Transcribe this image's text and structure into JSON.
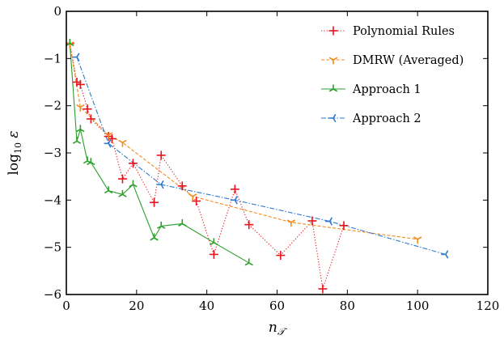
{
  "chart_data": {
    "type": "line",
    "xlabel": "n_T",
    "ylabel": "log10 ε",
    "xlim": [
      0,
      120
    ],
    "ylim": [
      -6,
      0
    ],
    "xticks": [
      0,
      20,
      40,
      60,
      80,
      100,
      120
    ],
    "yticks": [
      0,
      -1,
      -2,
      -3,
      -4,
      -5,
      -6
    ],
    "xtick_labels": [
      "0",
      "20",
      "40",
      "60",
      "80",
      "100",
      "120"
    ],
    "ytick_labels": [
      "0",
      "−1",
      "−2",
      "−3",
      "−4",
      "−5",
      "−6"
    ],
    "grid": false,
    "legend_position": "top-right",
    "series": [
      {
        "name": "Polynomial Rules",
        "color": "#e8141b",
        "style": "dotted",
        "marker": "plus",
        "points": [
          [
            1,
            -0.68
          ],
          [
            3,
            -1.5
          ],
          [
            4,
            -1.55
          ],
          [
            6,
            -2.07
          ],
          [
            7,
            -2.28
          ],
          [
            12,
            -2.65
          ],
          [
            13,
            -2.7
          ],
          [
            16,
            -3.55
          ],
          [
            19,
            -3.22
          ],
          [
            25,
            -4.05
          ],
          [
            27,
            -3.05
          ],
          [
            33,
            -3.7
          ],
          [
            37,
            -4.02
          ],
          [
            42,
            -5.15
          ],
          [
            48,
            -3.77
          ],
          [
            52,
            -4.52
          ],
          [
            61,
            -5.17
          ],
          [
            70,
            -4.44
          ],
          [
            73,
            -5.88
          ],
          [
            79,
            -4.54
          ]
        ]
      },
      {
        "name": "DMRW (Averaged)",
        "color": "#f28b1c",
        "style": "dashed",
        "marker": "tri_down",
        "points": [
          [
            1,
            -0.7
          ],
          [
            4,
            -2.03
          ],
          [
            12,
            -2.62
          ],
          [
            16,
            -2.78
          ],
          [
            36,
            -3.92
          ],
          [
            64,
            -4.47
          ],
          [
            100,
            -4.83
          ]
        ]
      },
      {
        "name": "Approach 1",
        "color": "#2ca02c",
        "style": "solid",
        "marker": "tri_up",
        "points": [
          [
            1,
            -0.68
          ],
          [
            3,
            -2.75
          ],
          [
            4,
            -2.5
          ],
          [
            6,
            -3.17
          ],
          [
            7,
            -3.2
          ],
          [
            12,
            -3.8
          ],
          [
            16,
            -3.88
          ],
          [
            19,
            -3.67
          ],
          [
            25,
            -4.8
          ],
          [
            27,
            -4.55
          ],
          [
            33,
            -4.5
          ],
          [
            42,
            -4.9
          ],
          [
            52,
            -5.33
          ]
        ]
      },
      {
        "name": "Approach 2",
        "color": "#2e7bd1",
        "style": "dashdot",
        "marker": "tri_left",
        "points": [
          [
            3,
            -0.97
          ],
          [
            12,
            -2.8
          ],
          [
            27,
            -3.67
          ],
          [
            48,
            -4.0
          ],
          [
            75,
            -4.45
          ],
          [
            108,
            -5.15
          ]
        ]
      }
    ]
  }
}
